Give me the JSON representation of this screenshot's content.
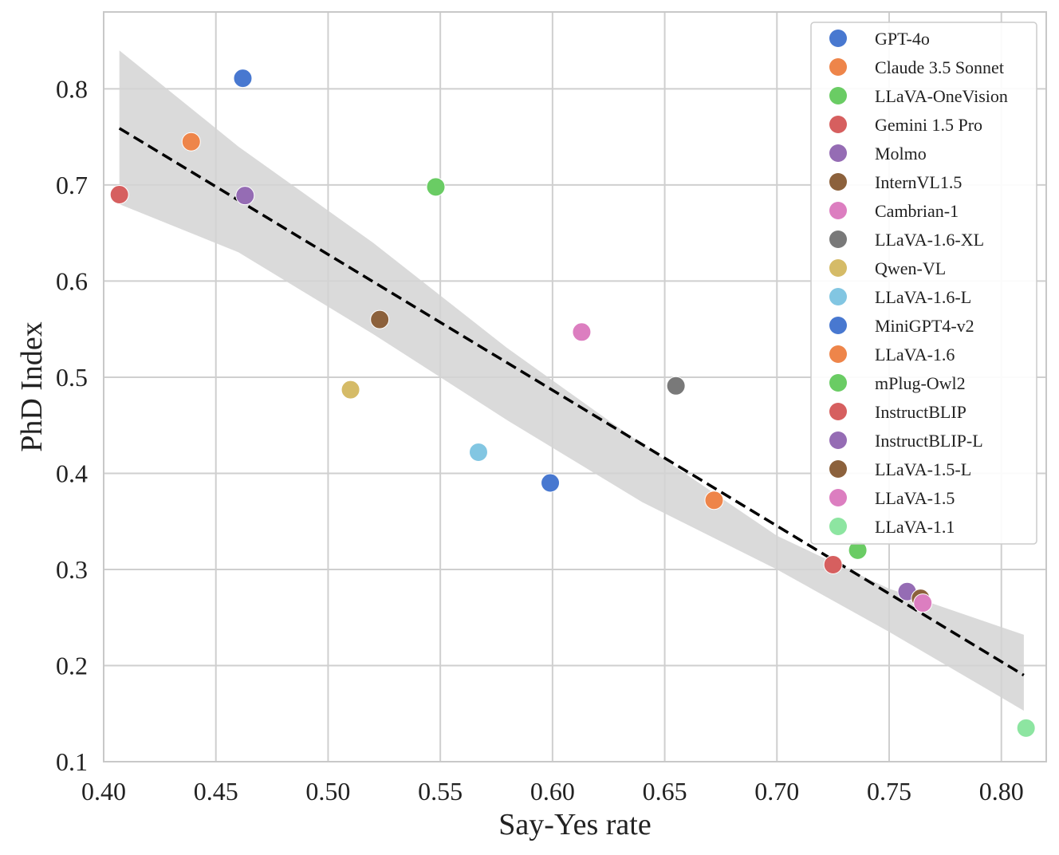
{
  "chart_data": {
    "type": "scatter",
    "title": "",
    "xlabel": "Say-Yes rate",
    "ylabel": "PhD Index",
    "xlim": [
      0.4,
      0.82
    ],
    "ylim": [
      0.1,
      0.88
    ],
    "xticks": [
      0.4,
      0.45,
      0.5,
      0.55,
      0.6,
      0.65,
      0.7,
      0.75,
      0.8
    ],
    "xtick_labels": [
      "0.40",
      "0.45",
      "0.50",
      "0.55",
      "0.60",
      "0.65",
      "0.70",
      "0.75",
      "0.80"
    ],
    "yticks": [
      0.1,
      0.2,
      0.3,
      0.4,
      0.5,
      0.6,
      0.7,
      0.8
    ],
    "ytick_labels": [
      "0.1",
      "0.2",
      "0.3",
      "0.4",
      "0.5",
      "0.6",
      "0.7",
      "0.8"
    ],
    "grid": true,
    "legend_position": "top-right",
    "trend_line": {
      "style": "dashed",
      "color": "#000000",
      "start": [
        0.407,
        0.759
      ],
      "end": [
        0.81,
        0.19
      ]
    },
    "confidence_band": {
      "color": "#d3d3d3",
      "x": [
        0.407,
        0.46,
        0.52,
        0.58,
        0.64,
        0.7,
        0.75,
        0.81
      ],
      "upper": [
        0.84,
        0.74,
        0.64,
        0.53,
        0.43,
        0.335,
        0.28,
        0.232
      ],
      "lower": [
        0.68,
        0.63,
        0.545,
        0.455,
        0.37,
        0.3,
        0.235,
        0.153
      ]
    },
    "series": [
      {
        "name": "GPT-4o",
        "color": "#4878d0",
        "x": 0.462,
        "y": 0.811
      },
      {
        "name": "Claude 3.5 Sonnet",
        "color": "#ee854a",
        "x": 0.439,
        "y": 0.745
      },
      {
        "name": "LLaVA-OneVision",
        "color": "#6acc64",
        "x": 0.548,
        "y": 0.698
      },
      {
        "name": "Gemini 1.5 Pro",
        "color": "#d65f5f",
        "x": 0.407,
        "y": 0.69
      },
      {
        "name": "Molmo",
        "color": "#956cb4",
        "x": 0.463,
        "y": 0.689
      },
      {
        "name": "InternVL1.5",
        "color": "#8c613c",
        "x": 0.523,
        "y": 0.56
      },
      {
        "name": "Cambrian-1",
        "color": "#dc7ec0",
        "x": 0.613,
        "y": 0.547
      },
      {
        "name": "LLaVA-1.6-XL",
        "color": "#797979",
        "x": 0.655,
        "y": 0.491
      },
      {
        "name": "Qwen-VL",
        "color": "#d5bb67",
        "x": 0.51,
        "y": 0.487
      },
      {
        "name": "LLaVA-1.6-L",
        "color": "#82c6e2",
        "x": 0.567,
        "y": 0.422
      },
      {
        "name": "MiniGPT4-v2",
        "color": "#4878d0",
        "x": 0.599,
        "y": 0.39
      },
      {
        "name": "LLaVA-1.6",
        "color": "#ee854a",
        "x": 0.672,
        "y": 0.372
      },
      {
        "name": "mPlug-Owl2",
        "color": "#6acc64",
        "x": 0.736,
        "y": 0.32
      },
      {
        "name": "InstructBLIP",
        "color": "#d65f5f",
        "x": 0.725,
        "y": 0.305
      },
      {
        "name": "InstructBLIP-L",
        "color": "#956cb4",
        "x": 0.758,
        "y": 0.277
      },
      {
        "name": "LLaVA-1.5-L",
        "color": "#8c613c",
        "x": 0.764,
        "y": 0.27
      },
      {
        "name": "LLaVA-1.5",
        "color": "#dc7ec0",
        "x": 0.765,
        "y": 0.265
      },
      {
        "name": "LLaVA-1.1",
        "color": "#8de5a1",
        "x": 0.811,
        "y": 0.135
      }
    ]
  }
}
